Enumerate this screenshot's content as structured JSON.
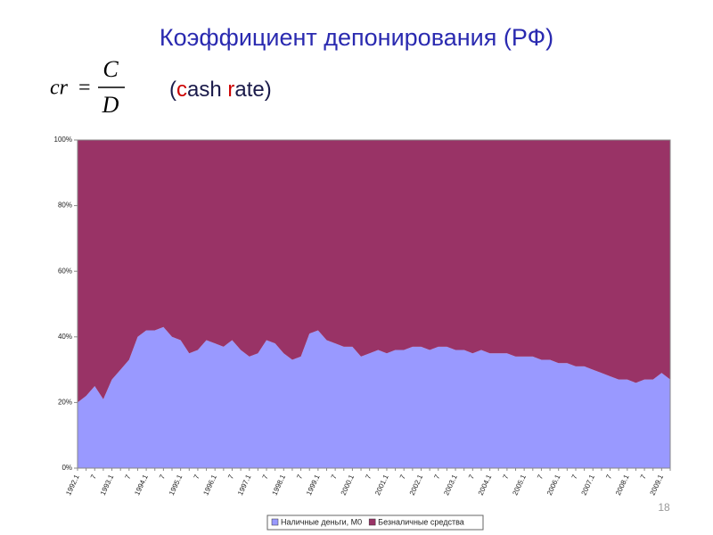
{
  "header": {
    "title": "Коэффициент депонирования (РФ)",
    "formula": {
      "lhs": "cr",
      "equals": "=",
      "numerator": "C",
      "denominator": "D"
    },
    "subtitle": {
      "parts": [
        "(",
        "c",
        "ash ",
        "r",
        "ate)"
      ],
      "colors": [
        "#1a1a4a",
        "#cc0000",
        "#1a1a4a",
        "#cc0000",
        "#1a1a4a"
      ]
    }
  },
  "page_number": "18",
  "chart_data": {
    "type": "stacked-area-100",
    "categories": [
      "1992.1",
      null,
      "7",
      null,
      "1993.1",
      null,
      "7",
      null,
      "1994.1",
      null,
      "7",
      null,
      "1995.1",
      null,
      "7",
      null,
      "1996.1",
      null,
      "7",
      null,
      "1997.1",
      null,
      "7",
      null,
      "1998.1",
      null,
      "7",
      null,
      "1999.1",
      null,
      "7",
      null,
      "2000.1",
      null,
      "7",
      null,
      "2001.1",
      null,
      "7",
      null,
      "2002.1",
      null,
      "7",
      null,
      "2003.1",
      null,
      "7",
      null,
      "2004.1",
      null,
      "7",
      null,
      "2005.1",
      null,
      "7",
      null,
      "2006.1",
      null,
      "7",
      null,
      "2007.1",
      null,
      "7",
      null,
      "2008.1",
      null,
      "7",
      null,
      "2009.1",
      null
    ],
    "series": [
      {
        "name": "Наличные деньги, М0",
        "color": "#9999ff",
        "values": [
          20,
          22,
          25,
          21,
          27,
          30,
          33,
          40,
          42,
          42,
          43,
          40,
          39,
          35,
          36,
          39,
          38,
          37,
          39,
          36,
          34,
          35,
          39,
          38,
          35,
          33,
          34,
          41,
          42,
          39,
          38,
          37,
          37,
          34,
          35,
          36,
          35,
          36,
          36,
          37,
          37,
          36,
          37,
          37,
          36,
          36,
          35,
          36,
          35,
          35,
          35,
          34,
          34,
          34,
          33,
          33,
          32,
          32,
          31,
          31,
          30,
          29,
          28,
          27,
          27,
          26,
          27,
          27,
          29,
          27
        ]
      },
      {
        "name": "Безналичные средства",
        "color": "#993366",
        "values": [
          80,
          78,
          75,
          79,
          73,
          70,
          67,
          60,
          58,
          58,
          57,
          60,
          61,
          65,
          64,
          61,
          62,
          63,
          61,
          64,
          66,
          65,
          61,
          62,
          65,
          67,
          66,
          59,
          58,
          61,
          62,
          63,
          63,
          66,
          65,
          64,
          65,
          64,
          64,
          63,
          63,
          64,
          63,
          63,
          64,
          64,
          65,
          64,
          65,
          65,
          65,
          66,
          66,
          66,
          67,
          67,
          68,
          68,
          69,
          69,
          70,
          71,
          72,
          73,
          73,
          74,
          73,
          73,
          71,
          73
        ]
      }
    ],
    "ylim": [
      0,
      100
    ],
    "yticks": [
      {
        "value": 0,
        "label": "0%"
      },
      {
        "value": 20,
        "label": "20%"
      },
      {
        "value": 40,
        "label": "40%"
      },
      {
        "value": 60,
        "label": "60%"
      },
      {
        "value": 80,
        "label": "80%"
      },
      {
        "value": 100,
        "label": "100%"
      }
    ],
    "legend": "bottom"
  }
}
